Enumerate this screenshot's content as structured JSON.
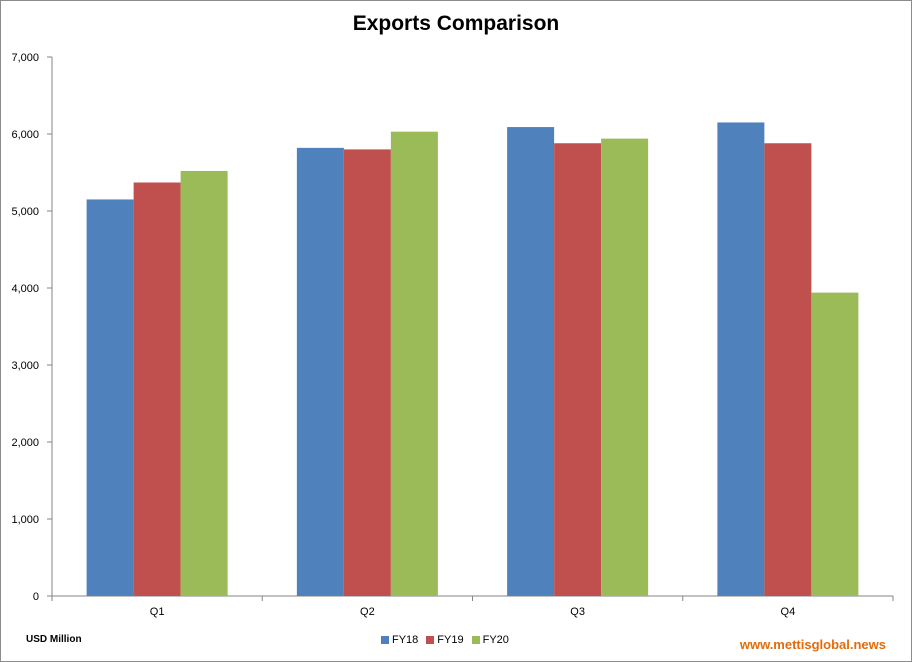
{
  "chart_data": {
    "type": "bar",
    "title": "Exports Comparison",
    "categories": [
      "Q1",
      "Q2",
      "Q3",
      "Q4"
    ],
    "series": [
      {
        "name": "FY18",
        "color": "#4f81bd",
        "values": [
          5150,
          5820,
          6090,
          6150
        ]
      },
      {
        "name": "FY19",
        "color": "#c0504d",
        "values": [
          5370,
          5800,
          5880,
          5880
        ]
      },
      {
        "name": "FY20",
        "color": "#9bbb59",
        "values": [
          5520,
          6030,
          5940,
          3940
        ]
      }
    ],
    "ylim": [
      0,
      7000
    ],
    "yticks": [
      0,
      1000,
      2000,
      3000,
      4000,
      5000,
      6000,
      7000
    ],
    "ytick_labels": [
      "0",
      "1,000",
      "2,000",
      "3,000",
      "4,000",
      "5,000",
      "6,000",
      "7,000"
    ],
    "grid": false,
    "legend_position": "bottom-center"
  },
  "unit_label": "USD Million",
  "source": "www.mettisglobal.news"
}
